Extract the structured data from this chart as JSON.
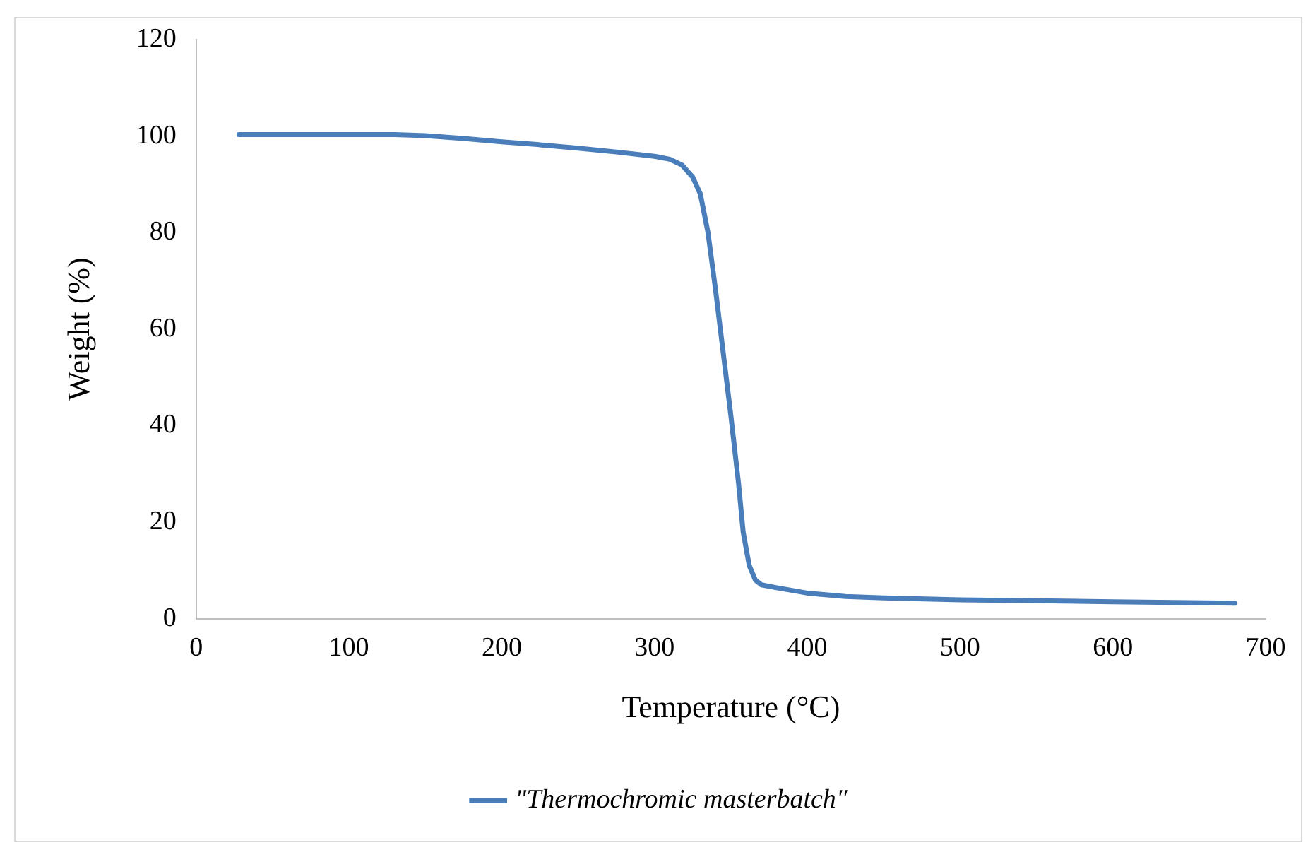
{
  "chart_data": {
    "type": "line",
    "xlabel": "Temperature (°C)",
    "ylabel": "Weight (%)",
    "xlim": [
      0,
      700
    ],
    "xticks": [
      0,
      100,
      200,
      300,
      400,
      500,
      600,
      700
    ],
    "ylim": [
      0,
      120
    ],
    "yticks": [
      0,
      20,
      40,
      60,
      80,
      100,
      120
    ],
    "grid": false,
    "legend": "bottom",
    "marker": "none",
    "line_style": "solid",
    "series": [
      {
        "name": "\"Thermochromic masterbatch\"",
        "color": "#4a7ebb",
        "x": [
          28,
          60,
          100,
          130,
          150,
          175,
          200,
          225,
          250,
          275,
          300,
          310,
          318,
          325,
          330,
          335,
          340,
          345,
          350,
          355,
          358,
          362,
          366,
          370,
          380,
          400,
          425,
          450,
          500,
          550,
          600,
          650,
          680
        ],
        "values": [
          100.3,
          100.3,
          100.3,
          100.3,
          100.1,
          99.5,
          98.8,
          98.2,
          97.5,
          96.7,
          95.8,
          95.2,
          94,
          91.5,
          88,
          80,
          68,
          55,
          42,
          28,
          18,
          11,
          8,
          7,
          6.4,
          5.3,
          4.6,
          4.3,
          3.9,
          3.7,
          3.5,
          3.3,
          3.2
        ]
      }
    ]
  }
}
